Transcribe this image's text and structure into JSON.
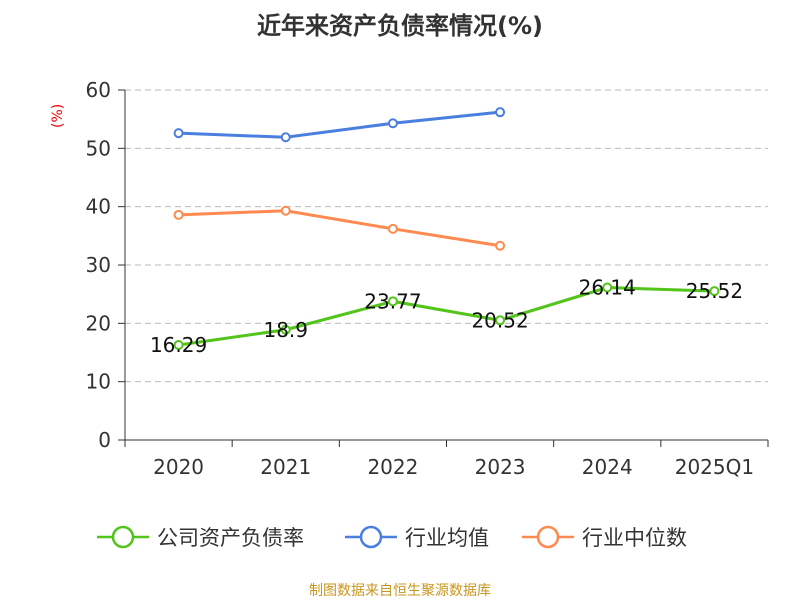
{
  "chart_data": {
    "type": "line",
    "title": "近年来资产负债率情况(%)",
    "ylabel": "(%)",
    "xlabel": "",
    "categories": [
      "2020",
      "2021",
      "2022",
      "2023",
      "2024",
      "2025Q1"
    ],
    "ylim": [
      0,
      60
    ],
    "yticks": [
      0,
      10,
      20,
      30,
      40,
      50,
      60
    ],
    "grid": true,
    "legend_placement": "bottom",
    "series": [
      {
        "name": "公司资产负债率",
        "color": "#52c41a",
        "values": [
          16.29,
          18.9,
          23.77,
          20.52,
          26.14,
          25.52
        ],
        "labels": [
          "16.29",
          "18.9",
          "23.77",
          "20.52",
          "26.14",
          "25.52"
        ]
      },
      {
        "name": "行业均值",
        "color": "#4a7fe0",
        "values": [
          52.6,
          51.9,
          54.3,
          56.2,
          null,
          null
        ]
      },
      {
        "name": "行业中位数",
        "color": "#ff8a50",
        "values": [
          38.6,
          39.3,
          36.2,
          33.3,
          null,
          null
        ]
      }
    ]
  },
  "source": "制图数据来自恒生聚源数据库"
}
